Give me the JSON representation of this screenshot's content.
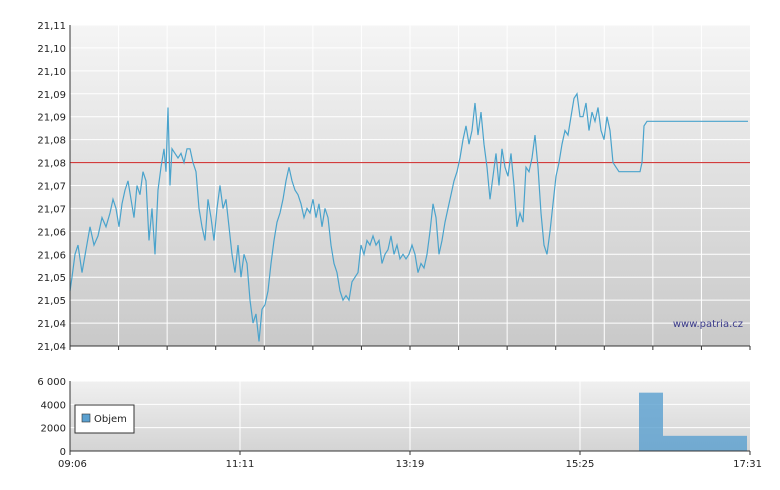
{
  "watermark": "www.patria.cz",
  "colors": {
    "price": "#4aa3cc",
    "reference": "#cc2222",
    "volume": "#5aa0d0",
    "grid": "#ffffff"
  },
  "chart_data": [
    {
      "type": "line",
      "name": "price",
      "x_ticks": [
        "09:06",
        "11:11",
        "13:19",
        "15:25",
        "17:31"
      ],
      "ylim": [
        21.04,
        21.11
      ],
      "y_ticks": [
        "21,04",
        "21,04",
        "21,05",
        "21,05",
        "21,06",
        "21,06",
        "21,07",
        "21,07",
        "21,08",
        "21,08",
        "21,09",
        "21,09",
        "21,10",
        "21,10",
        "21,11"
      ],
      "reference_line": 21.08,
      "grid": true,
      "series": [
        {
          "values": [
            [
              0,
              21.052
            ],
            [
              2,
              21.055
            ],
            [
              5,
              21.06
            ],
            [
              8,
              21.062
            ],
            [
              12,
              21.056
            ],
            [
              16,
              21.061
            ],
            [
              20,
              21.066
            ],
            [
              24,
              21.062
            ],
            [
              28,
              21.064
            ],
            [
              32,
              21.068
            ],
            [
              36,
              21.066
            ],
            [
              40,
              21.069
            ],
            [
              43,
              21.072
            ],
            [
              46,
              21.07
            ],
            [
              49,
              21.066
            ],
            [
              52,
              21.071
            ],
            [
              55,
              21.074
            ],
            [
              58,
              21.076
            ],
            [
              61,
              21.072
            ],
            [
              64,
              21.068
            ],
            [
              67,
              21.075
            ],
            [
              70,
              21.073
            ],
            [
              73,
              21.078
            ],
            [
              76,
              21.076
            ],
            [
              79,
              21.063
            ],
            [
              82,
              21.07
            ],
            [
              85,
              21.06
            ],
            [
              88,
              21.074
            ],
            [
              91,
              21.079
            ],
            [
              94,
              21.083
            ],
            [
              96,
              21.078
            ],
            [
              98,
              21.092
            ],
            [
              100,
              21.075
            ],
            [
              102,
              21.083
            ],
            [
              105,
              21.082
            ],
            [
              108,
              21.081
            ],
            [
              111,
              21.082
            ],
            [
              114,
              21.08
            ],
            [
              117,
              21.083
            ],
            [
              120,
              21.083
            ],
            [
              123,
              21.08
            ],
            [
              126,
              21.078
            ],
            [
              129,
              21.07
            ],
            [
              132,
              21.066
            ],
            [
              135,
              21.063
            ],
            [
              138,
              21.072
            ],
            [
              141,
              21.068
            ],
            [
              144,
              21.063
            ],
            [
              147,
              21.07
            ],
            [
              150,
              21.075
            ],
            [
              153,
              21.07
            ],
            [
              156,
              21.072
            ],
            [
              159,
              21.066
            ],
            [
              162,
              21.06
            ],
            [
              165,
              21.056
            ],
            [
              168,
              21.062
            ],
            [
              171,
              21.055
            ],
            [
              174,
              21.06
            ],
            [
              177,
              21.058
            ],
            [
              180,
              21.05
            ],
            [
              183,
              21.045
            ],
            [
              186,
              21.047
            ],
            [
              189,
              21.041
            ],
            [
              192,
              21.048
            ],
            [
              195,
              21.049
            ],
            [
              198,
              21.052
            ],
            [
              201,
              21.058
            ],
            [
              204,
              21.063
            ],
            [
              207,
              21.067
            ],
            [
              210,
              21.069
            ],
            [
              213,
              21.072
            ],
            [
              216,
              21.076
            ],
            [
              219,
              21.079
            ],
            [
              222,
              21.076
            ],
            [
              225,
              21.074
            ],
            [
              228,
              21.073
            ],
            [
              231,
              21.071
            ],
            [
              234,
              21.068
            ],
            [
              237,
              21.07
            ],
            [
              240,
              21.069
            ],
            [
              243,
              21.072
            ],
            [
              246,
              21.068
            ],
            [
              249,
              21.071
            ],
            [
              252,
              21.066
            ],
            [
              255,
              21.07
            ],
            [
              258,
              21.068
            ],
            [
              261,
              21.062
            ],
            [
              264,
              21.058
            ],
            [
              267,
              21.056
            ],
            [
              270,
              21.052
            ],
            [
              273,
              21.05
            ],
            [
              276,
              21.051
            ],
            [
              279,
              21.05
            ],
            [
              282,
              21.054
            ],
            [
              285,
              21.055
            ],
            [
              288,
              21.056
            ],
            [
              291,
              21.062
            ],
            [
              294,
              21.06
            ],
            [
              297,
              21.063
            ],
            [
              300,
              21.062
            ],
            [
              303,
              21.064
            ],
            [
              306,
              21.062
            ],
            [
              309,
              21.063
            ],
            [
              312,
              21.058
            ],
            [
              315,
              21.06
            ],
            [
              318,
              21.061
            ],
            [
              321,
              21.064
            ],
            [
              324,
              21.06
            ],
            [
              327,
              21.062
            ],
            [
              330,
              21.059
            ],
            [
              333,
              21.06
            ],
            [
              336,
              21.059
            ],
            [
              339,
              21.06
            ],
            [
              342,
              21.062
            ],
            [
              345,
              21.06
            ],
            [
              348,
              21.056
            ],
            [
              351,
              21.058
            ],
            [
              354,
              21.057
            ],
            [
              357,
              21.06
            ],
            [
              360,
              21.065
            ],
            [
              363,
              21.071
            ],
            [
              366,
              21.068
            ],
            [
              369,
              21.06
            ],
            [
              372,
              21.063
            ],
            [
              375,
              21.067
            ],
            [
              378,
              21.07
            ],
            [
              381,
              21.073
            ],
            [
              384,
              21.076
            ],
            [
              387,
              21.078
            ],
            [
              390,
              21.081
            ],
            [
              393,
              21.085
            ],
            [
              396,
              21.088
            ],
            [
              399,
              21.084
            ],
            [
              402,
              21.087
            ],
            [
              405,
              21.093
            ],
            [
              408,
              21.086
            ],
            [
              411,
              21.091
            ],
            [
              414,
              21.084
            ],
            [
              417,
              21.079
            ],
            [
              420,
              21.072
            ],
            [
              423,
              21.077
            ],
            [
              426,
              21.082
            ],
            [
              429,
              21.075
            ],
            [
              432,
              21.083
            ],
            [
              435,
              21.079
            ],
            [
              438,
              21.077
            ],
            [
              441,
              21.082
            ],
            [
              444,
              21.075
            ],
            [
              447,
              21.066
            ],
            [
              450,
              21.069
            ],
            [
              453,
              21.067
            ],
            [
              456,
              21.079
            ],
            [
              459,
              21.078
            ],
            [
              462,
              21.081
            ],
            [
              465,
              21.086
            ],
            [
              468,
              21.079
            ],
            [
              471,
              21.069
            ],
            [
              474,
              21.062
            ],
            [
              477,
              21.06
            ],
            [
              480,
              21.065
            ],
            [
              483,
              21.071
            ],
            [
              486,
              21.077
            ],
            [
              489,
              21.08
            ],
            [
              492,
              21.084
            ],
            [
              495,
              21.087
            ],
            [
              498,
              21.086
            ],
            [
              501,
              21.09
            ],
            [
              504,
              21.094
            ],
            [
              507,
              21.095
            ],
            [
              510,
              21.09
            ],
            [
              513,
              21.09
            ],
            [
              516,
              21.093
            ],
            [
              519,
              21.087
            ],
            [
              522,
              21.091
            ],
            [
              525,
              21.089
            ],
            [
              528,
              21.092
            ],
            [
              531,
              21.087
            ],
            [
              534,
              21.085
            ],
            [
              537,
              21.09
            ],
            [
              540,
              21.087
            ],
            [
              543,
              21.08
            ],
            [
              546,
              21.079
            ],
            [
              549,
              21.078
            ],
            [
              552,
              21.078
            ],
            [
              555,
              21.078
            ],
            [
              558,
              21.078
            ],
            [
              561,
              21.078
            ],
            [
              564,
              21.078
            ],
            [
              567,
              21.078
            ],
            [
              570,
              21.078
            ],
            [
              572,
              21.08
            ],
            [
              574,
              21.088
            ],
            [
              577,
              21.089
            ],
            [
              580,
              21.089
            ],
            [
              584,
              21.089
            ],
            [
              590,
              21.089
            ],
            [
              600,
              21.089
            ],
            [
              620,
              21.089
            ],
            [
              640,
              21.089
            ],
            [
              660,
              21.089
            ],
            [
              678,
              21.089
            ]
          ]
        }
      ]
    },
    {
      "type": "bar",
      "name": "volume",
      "legend": [
        "Objem"
      ],
      "ylim": [
        0,
        6000
      ],
      "y_ticks": [
        "0",
        "2000",
        "4000",
        "6 000"
      ],
      "x_ticks": [
        "09:06",
        "11:11",
        "13:19",
        "15:25",
        "17:31"
      ],
      "grid": true,
      "series": [
        {
          "name": "Objem",
          "values": [
            [
              570,
              5000
            ],
            [
              572,
              5000
            ],
            [
              574,
              5000
            ],
            [
              576,
              5000
            ],
            [
              578,
              5000
            ],
            [
              580,
              5000
            ],
            [
              582,
              5000
            ],
            [
              584,
              5000
            ],
            [
              586,
              5000
            ],
            [
              588,
              5000
            ],
            [
              590,
              5000
            ],
            [
              592,
              5000
            ],
            [
              594,
              1300
            ],
            [
              596,
              1300
            ],
            [
              598,
              1300
            ],
            [
              600,
              1300
            ],
            [
              602,
              1300
            ],
            [
              604,
              1300
            ],
            [
              606,
              1300
            ],
            [
              608,
              1300
            ],
            [
              610,
              1300
            ],
            [
              612,
              1300
            ],
            [
              614,
              1300
            ],
            [
              616,
              1300
            ],
            [
              618,
              1300
            ],
            [
              620,
              1300
            ],
            [
              622,
              1300
            ],
            [
              624,
              1300
            ],
            [
              626,
              1300
            ],
            [
              628,
              1300
            ],
            [
              630,
              1300
            ],
            [
              632,
              1300
            ],
            [
              634,
              1300
            ],
            [
              636,
              1300
            ],
            [
              638,
              1300
            ],
            [
              640,
              1300
            ],
            [
              642,
              1300
            ],
            [
              644,
              1300
            ],
            [
              646,
              1300
            ],
            [
              648,
              1300
            ],
            [
              650,
              1300
            ],
            [
              652,
              1300
            ],
            [
              654,
              1300
            ],
            [
              656,
              1300
            ],
            [
              658,
              1300
            ],
            [
              660,
              1300
            ],
            [
              662,
              1300
            ],
            [
              664,
              1300
            ],
            [
              666,
              1300
            ],
            [
              668,
              1300
            ],
            [
              670,
              1300
            ],
            [
              672,
              1300
            ],
            [
              674,
              1300
            ],
            [
              676,
              1300
            ]
          ]
        }
      ]
    }
  ]
}
